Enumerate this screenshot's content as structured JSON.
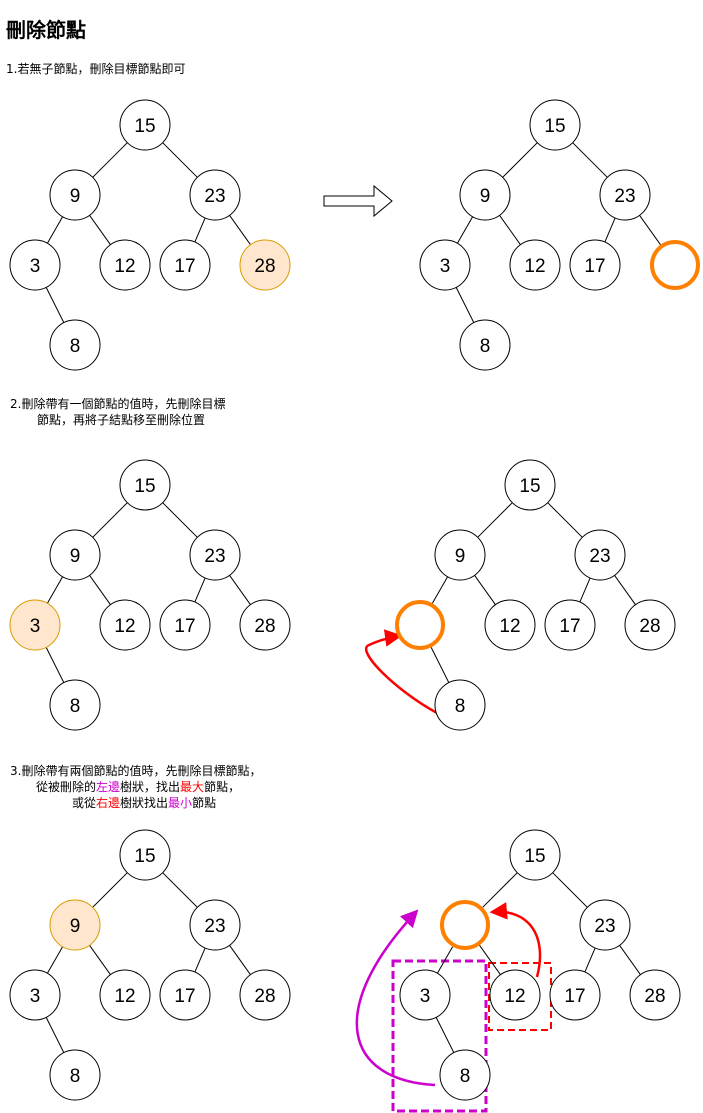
{
  "title": "刪除節點",
  "steps": {
    "s1": "1.若無子節點，刪除目標節點即可",
    "s2_line1": "2.刪除帶有一個節點的值時，先刪除目標",
    "s2_line2": "節點，再將子結點移至刪除位置",
    "s3_line1": "3.刪除帶有兩個節點的值時，先刪除目標節點，",
    "s3_l2_a": "從被刪除的",
    "s3_l2_b": "左邊",
    "s3_l2_c": "樹狀，找出",
    "s3_l2_d": "最大",
    "s3_l2_e": "節點，",
    "s3_l3_a": "或從",
    "s3_l3_b": "右邊",
    "s3_l3_c": "樹狀找出",
    "s3_l3_d": "最小",
    "s3_l3_e": "節點"
  },
  "colors": {
    "highlight_fill": "#ffe6cc",
    "highlight_stroke": "#d79b00",
    "removed_circle": "#ff8000",
    "move_arrow": "#ff0000",
    "left_subtree": "#cc00cc",
    "right_subtree": "#ff0000"
  },
  "icons": {
    "transition": "right-arrow-icon"
  },
  "trees": [
    {
      "id": "tree1-before",
      "nodes": [
        {
          "label": "15"
        },
        {
          "label": "9"
        },
        {
          "label": "23"
        },
        {
          "label": "3"
        },
        {
          "label": "12"
        },
        {
          "label": "17"
        },
        {
          "label": "28",
          "highlight": true
        },
        {
          "label": "8"
        }
      ]
    },
    {
      "id": "tree1-after",
      "nodes": [
        {
          "label": "15"
        },
        {
          "label": "9"
        },
        {
          "label": "23"
        },
        {
          "label": "3"
        },
        {
          "label": "12"
        },
        {
          "label": "17"
        },
        {
          "label": "",
          "removed": true
        },
        {
          "label": "8"
        }
      ]
    },
    {
      "id": "tree2-before",
      "nodes": [
        {
          "label": "15"
        },
        {
          "label": "9"
        },
        {
          "label": "23"
        },
        {
          "label": "3",
          "highlight": true
        },
        {
          "label": "12"
        },
        {
          "label": "17"
        },
        {
          "label": "28"
        },
        {
          "label": "8"
        }
      ]
    },
    {
      "id": "tree2-after",
      "nodes": [
        {
          "label": "15"
        },
        {
          "label": "9"
        },
        {
          "label": "23"
        },
        {
          "label": "",
          "removed": true
        },
        {
          "label": "12"
        },
        {
          "label": "17"
        },
        {
          "label": "28"
        },
        {
          "label": "8"
        }
      ]
    },
    {
      "id": "tree3-before",
      "nodes": [
        {
          "label": "15"
        },
        {
          "label": "9",
          "highlight": true
        },
        {
          "label": "23"
        },
        {
          "label": "3"
        },
        {
          "label": "12"
        },
        {
          "label": "17"
        },
        {
          "label": "28"
        },
        {
          "label": "8"
        }
      ]
    },
    {
      "id": "tree3-after",
      "nodes": [
        {
          "label": "15"
        },
        {
          "label": "",
          "removed": true
        },
        {
          "label": "23"
        },
        {
          "label": "3"
        },
        {
          "label": "12"
        },
        {
          "label": "17"
        },
        {
          "label": "28"
        },
        {
          "label": "8"
        }
      ]
    }
  ]
}
